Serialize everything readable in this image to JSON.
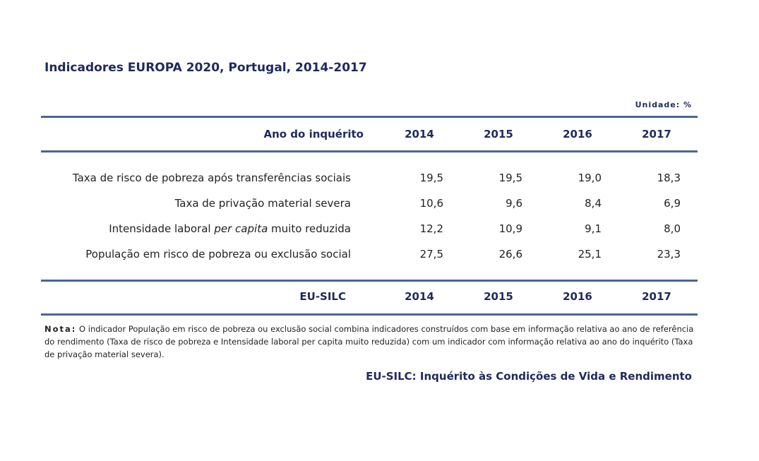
{
  "title": "Indicadores EUROPA 2020, Portugal, 2014-2017",
  "unit": "Unidade: %",
  "table": {
    "header": {
      "label": "Ano do inquérito",
      "years": [
        "2014",
        "2015",
        "2016",
        "2017"
      ]
    },
    "rows": [
      {
        "label": [
          "Taxa de risco de pobreza após transferências sociais"
        ],
        "values": [
          "19,5",
          "19,5",
          "19,0",
          "18,3"
        ]
      },
      {
        "label": [
          "Taxa de privação material severa"
        ],
        "values": [
          "10,6",
          "9,6",
          "8,4",
          "6,9"
        ]
      },
      {
        "label": [
          "Intensidade laboral ",
          "per capita",
          " muito reduzida"
        ],
        "values": [
          "12,2",
          "10,9",
          "9,1",
          "8,0"
        ]
      },
      {
        "label": [
          "População em risco de pobreza ou exclusão social"
        ],
        "values": [
          "27,5",
          "26,6",
          "25,1",
          "23,3"
        ]
      }
    ],
    "footer": {
      "label": "EU-SILC",
      "years": [
        "2014",
        "2015",
        "2016",
        "2017"
      ]
    }
  },
  "note": {
    "label": "Nota:",
    "text": "O indicador População em risco de pobreza ou exclusão social combina indicadores construídos com base em informação relativa ao ano de referência do rendimento (Taxa de risco de pobreza e Intensidade laboral per capita muito reduzida) com um indicador com informação relativa ao ano do inquérito (Taxa de privação material severa)."
  },
  "source": "EU-SILC: Inquérito às Condições de Vida e Rendimento"
}
